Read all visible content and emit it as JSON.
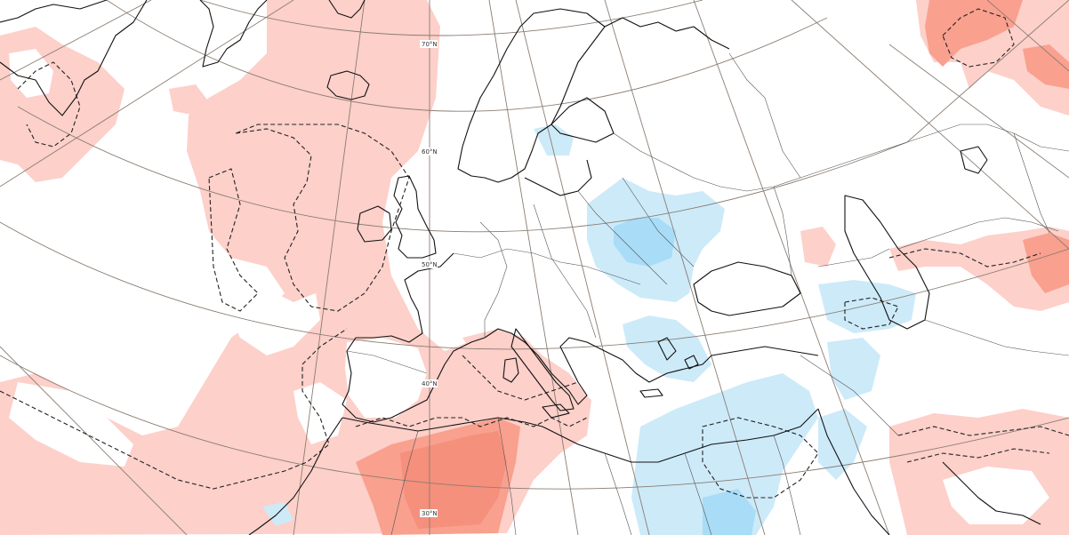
{
  "map": {
    "latitude_labels": [
      {
        "id": "lat-70",
        "text": "70°N"
      },
      {
        "id": "lat-60",
        "text": "60°N"
      },
      {
        "id": "lat-50",
        "text": "50°N"
      },
      {
        "id": "lat-40",
        "text": "40°N"
      },
      {
        "id": "lat-30",
        "text": "30°N"
      }
    ],
    "colors": {
      "background": "#ffffff",
      "warm_anomaly_light": "#fdd0ca",
      "warm_anomaly_strong": "#f9a08f",
      "warm_anomaly_deep": "#f0806a",
      "cold_anomaly_light": "#cdeaf9",
      "cold_anomaly_medium": "#a9dcf6",
      "graticule": "#8a7d72",
      "coastline": "#111111",
      "borders": "#555555",
      "contour": "#222222"
    }
  }
}
